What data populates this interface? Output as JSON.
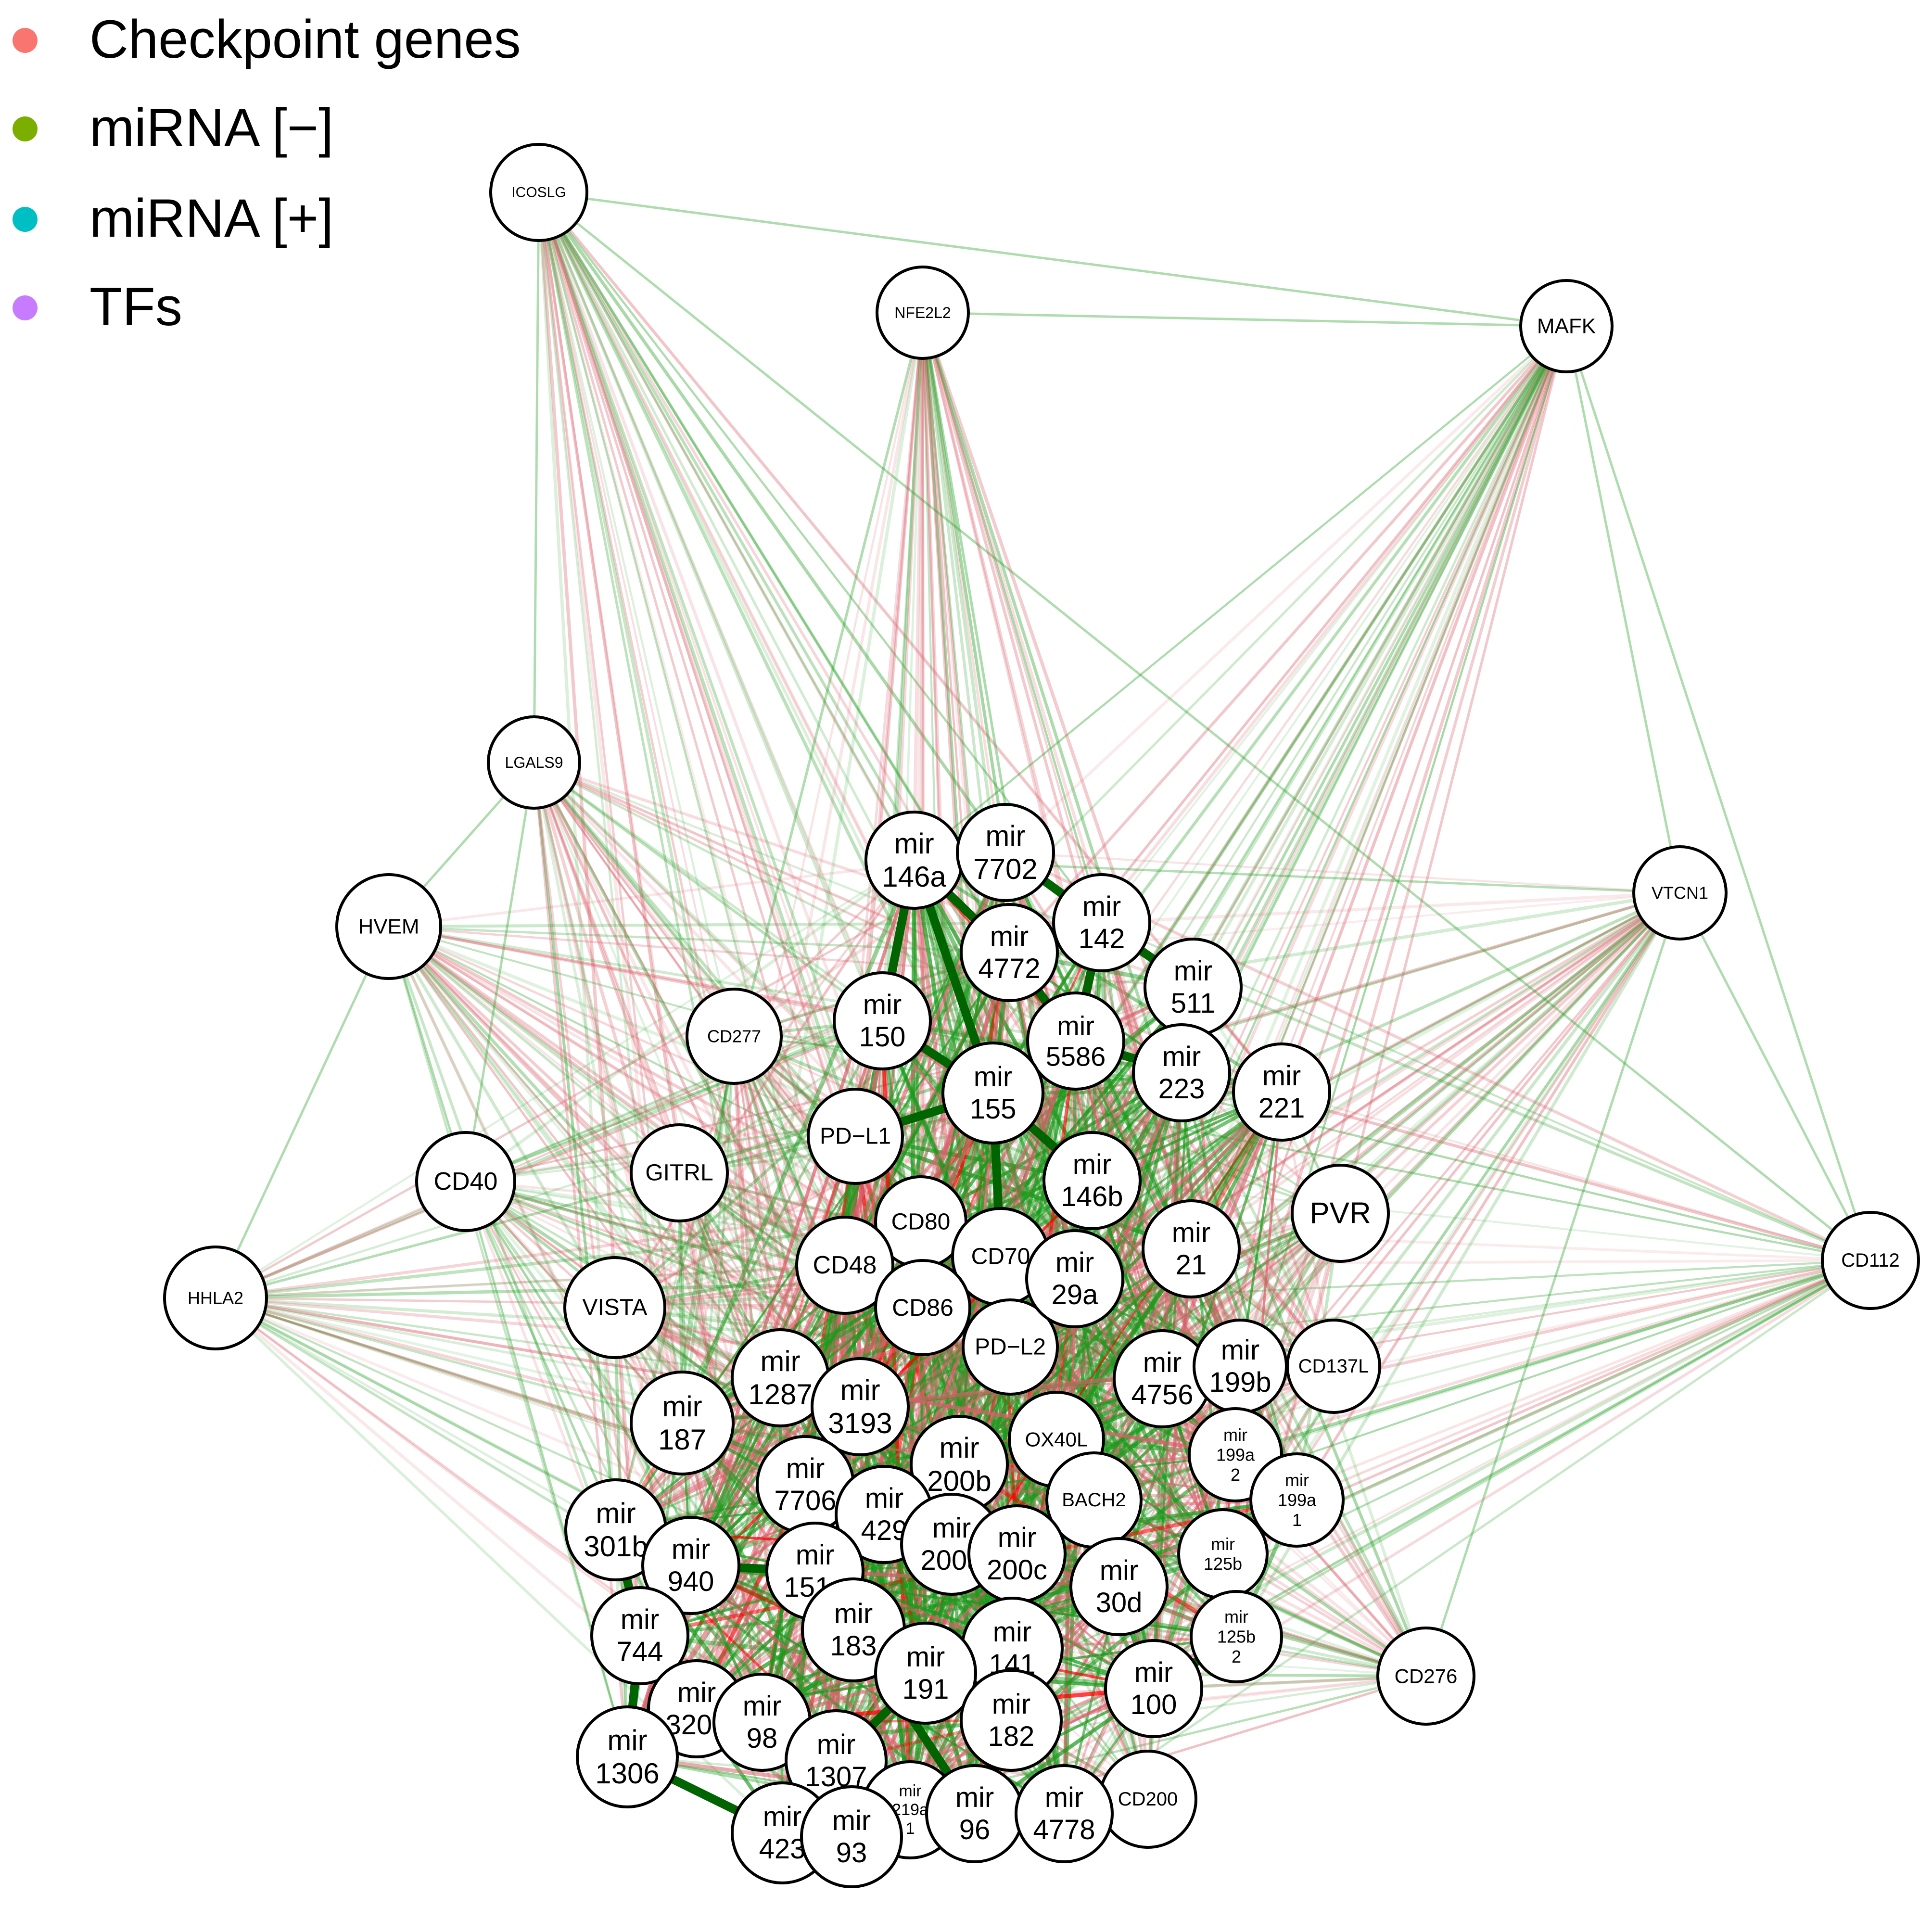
{
  "legend": [
    {
      "label": "Checkpoint genes",
      "color": "#F8766D"
    },
    {
      "label": "miRNA [−]",
      "color": "#7CAE00"
    },
    {
      "label": "miRNA [+]",
      "color": "#00BFC4"
    },
    {
      "label": "TFs",
      "color": "#C77CFF"
    }
  ],
  "edge_colors": {
    "positive": "#1a9a1a",
    "negative": "#d8606a",
    "strong_positive": "#006400",
    "strong_negative": "#ff0000"
  },
  "nodes": [
    {
      "id": "ICOSLG",
      "lines": [
        "ICOSLG"
      ],
      "type": "gene"
    },
    {
      "id": "NFE2L2",
      "lines": [
        "NFE2L2"
      ],
      "type": "tf"
    },
    {
      "id": "MAFK",
      "lines": [
        "MAFK"
      ],
      "type": "tf"
    },
    {
      "id": "LGALS9",
      "lines": [
        "LGALS9"
      ],
      "type": "gene"
    },
    {
      "id": "HVEM",
      "lines": [
        "HVEM"
      ],
      "type": "gene"
    },
    {
      "id": "VTCN1",
      "lines": [
        "VTCN1"
      ],
      "type": "gene"
    },
    {
      "id": "CD277",
      "lines": [
        "CD277"
      ],
      "type": "gene"
    },
    {
      "id": "CD40",
      "lines": [
        "CD40"
      ],
      "type": "gene"
    },
    {
      "id": "GITRL",
      "lines": [
        "GITRL"
      ],
      "type": "gene"
    },
    {
      "id": "HHLA2",
      "lines": [
        "HHLA2"
      ],
      "type": "gene"
    },
    {
      "id": "VISTA",
      "lines": [
        "VISTA"
      ],
      "type": "gene"
    },
    {
      "id": "CD112",
      "lines": [
        "CD112"
      ],
      "type": "gene"
    },
    {
      "id": "PVR",
      "lines": [
        "PVR"
      ],
      "type": "gene"
    },
    {
      "id": "CD137L",
      "lines": [
        "CD137L"
      ],
      "type": "gene"
    },
    {
      "id": "CD276",
      "lines": [
        "CD276"
      ],
      "type": "gene"
    },
    {
      "id": "CD200",
      "lines": [
        "CD200"
      ],
      "type": "gene"
    },
    {
      "id": "PD-L1",
      "lines": [
        "PD−L1"
      ],
      "type": "gene"
    },
    {
      "id": "CD80",
      "lines": [
        "CD80"
      ],
      "type": "gene"
    },
    {
      "id": "CD48",
      "lines": [
        "CD48"
      ],
      "type": "gene"
    },
    {
      "id": "CD70",
      "lines": [
        "CD70"
      ],
      "type": "gene"
    },
    {
      "id": "CD86",
      "lines": [
        "CD86"
      ],
      "type": "gene"
    },
    {
      "id": "PD-L2",
      "lines": [
        "PD−L2"
      ],
      "type": "gene"
    },
    {
      "id": "OX40L",
      "lines": [
        "OX40L"
      ],
      "type": "gene"
    },
    {
      "id": "BACH2",
      "lines": [
        "BACH2"
      ],
      "type": "tf"
    },
    {
      "id": "mir-146a",
      "lines": [
        "mir",
        "146a"
      ],
      "type": "mirna"
    },
    {
      "id": "mir-7702",
      "lines": [
        "mir",
        "7702"
      ],
      "type": "mirna"
    },
    {
      "id": "mir-142",
      "lines": [
        "mir",
        "142"
      ],
      "type": "mirna"
    },
    {
      "id": "mir-4772",
      "lines": [
        "mir",
        "4772"
      ],
      "type": "mirna"
    },
    {
      "id": "mir-511",
      "lines": [
        "mir",
        "511"
      ],
      "type": "mirna"
    },
    {
      "id": "mir-150",
      "lines": [
        "mir",
        "150"
      ],
      "type": "mirna"
    },
    {
      "id": "mir-5586",
      "lines": [
        "mir",
        "5586"
      ],
      "type": "mirna"
    },
    {
      "id": "mir-223",
      "lines": [
        "mir",
        "223"
      ],
      "type": "mirna"
    },
    {
      "id": "mir-221",
      "lines": [
        "mir",
        "221"
      ],
      "type": "mirna"
    },
    {
      "id": "mir-155",
      "lines": [
        "mir",
        "155"
      ],
      "type": "mirna"
    },
    {
      "id": "mir-146b",
      "lines": [
        "mir",
        "146b"
      ],
      "type": "mirna"
    },
    {
      "id": "mir-21",
      "lines": [
        "mir",
        "21"
      ],
      "type": "mirna"
    },
    {
      "id": "mir-29a",
      "lines": [
        "mir",
        "29a"
      ],
      "type": "mirna"
    },
    {
      "id": "mir-4756",
      "lines": [
        "mir",
        "4756"
      ],
      "type": "mirna"
    },
    {
      "id": "mir-199b",
      "lines": [
        "mir",
        "199b"
      ],
      "type": "mirna"
    },
    {
      "id": "mir-1287",
      "lines": [
        "mir",
        "1287"
      ],
      "type": "mirna"
    },
    {
      "id": "mir-3193",
      "lines": [
        "mir",
        "3193"
      ],
      "type": "mirna"
    },
    {
      "id": "mir-187",
      "lines": [
        "mir",
        "187"
      ],
      "type": "mirna"
    },
    {
      "id": "mir-200b",
      "lines": [
        "mir",
        "200b"
      ],
      "type": "mirna"
    },
    {
      "id": "mir-199a-2",
      "lines": [
        "mir",
        "199a",
        "2"
      ],
      "type": "mirna"
    },
    {
      "id": "mir-199a-1",
      "lines": [
        "mir",
        "199a",
        "1"
      ],
      "type": "mirna"
    },
    {
      "id": "mir-7706",
      "lines": [
        "mir",
        "7706"
      ],
      "type": "mirna"
    },
    {
      "id": "mir-429",
      "lines": [
        "mir",
        "429"
      ],
      "type": "mirna"
    },
    {
      "id": "mir-200a",
      "lines": [
        "mir",
        "200a"
      ],
      "type": "mirna"
    },
    {
      "id": "mir-200c",
      "lines": [
        "mir",
        "200c"
      ],
      "type": "mirna"
    },
    {
      "id": "mir-301b",
      "lines": [
        "mir",
        "301b"
      ],
      "type": "mirna"
    },
    {
      "id": "mir-940",
      "lines": [
        "mir",
        "940"
      ],
      "type": "mirna"
    },
    {
      "id": "mir-151a",
      "lines": [
        "mir",
        "151a"
      ],
      "type": "mirna"
    },
    {
      "id": "mir-125b-1",
      "lines": [
        "mir",
        "125b"
      ],
      "type": "mirna"
    },
    {
      "id": "mir-30d",
      "lines": [
        "mir",
        "30d"
      ],
      "type": "mirna"
    },
    {
      "id": "mir-744",
      "lines": [
        "mir",
        "744"
      ],
      "type": "mirna"
    },
    {
      "id": "mir-183",
      "lines": [
        "mir",
        "183"
      ],
      "type": "mirna"
    },
    {
      "id": "mir-141",
      "lines": [
        "mir",
        "141"
      ],
      "type": "mirna"
    },
    {
      "id": "mir-125b-2",
      "lines": [
        "mir",
        "125b",
        "2"
      ],
      "type": "mirna"
    },
    {
      "id": "mir-191",
      "lines": [
        "mir",
        "191"
      ],
      "type": "mirna"
    },
    {
      "id": "mir-100",
      "lines": [
        "mir",
        "100"
      ],
      "type": "mirna"
    },
    {
      "id": "mir-3200",
      "lines": [
        "mir",
        "3200"
      ],
      "type": "mirna"
    },
    {
      "id": "mir-98",
      "lines": [
        "mir",
        "98"
      ],
      "type": "mirna"
    },
    {
      "id": "mir-182",
      "lines": [
        "mir",
        "182"
      ],
      "type": "mirna"
    },
    {
      "id": "mir-1306",
      "lines": [
        "mir",
        "1306"
      ],
      "type": "mirna"
    },
    {
      "id": "mir-1307",
      "lines": [
        "mir",
        "1307"
      ],
      "type": "mirna"
    },
    {
      "id": "mir-219a-1",
      "lines": [
        "mir",
        "219a",
        "1"
      ],
      "type": "mirna"
    },
    {
      "id": "mir-96",
      "lines": [
        "mir",
        "96"
      ],
      "type": "mirna"
    },
    {
      "id": "mir-4778",
      "lines": [
        "mir",
        "4778"
      ],
      "type": "mirna"
    },
    {
      "id": "mir-423",
      "lines": [
        "mir",
        "423"
      ],
      "type": "mirna"
    },
    {
      "id": "mir-93",
      "lines": [
        "mir",
        "93"
      ],
      "type": "mirna"
    }
  ],
  "strong_edges": [
    [
      "mir-146a",
      "mir-150"
    ],
    [
      "mir-146a",
      "mir-155"
    ],
    [
      "mir-146a",
      "mir-4772"
    ],
    [
      "mir-7702",
      "mir-142"
    ],
    [
      "mir-142",
      "mir-5586"
    ],
    [
      "mir-142",
      "mir-511"
    ],
    [
      "mir-5586",
      "mir-223"
    ],
    [
      "mir-4772",
      "mir-5586"
    ],
    [
      "mir-155",
      "mir-146b"
    ],
    [
      "mir-155",
      "PD-L1"
    ],
    [
      "mir-155",
      "CD70"
    ],
    [
      "mir-150",
      "mir-155"
    ],
    [
      "mir-199b",
      "mir-199a-2"
    ],
    [
      "mir-199a-2",
      "mir-199a-1"
    ],
    [
      "mir-199a-1",
      "mir-125b-1"
    ],
    [
      "mir-125b-1",
      "mir-125b-2"
    ],
    [
      "mir-125b-2",
      "mir-100"
    ],
    [
      "mir-200b",
      "mir-200a"
    ],
    [
      "mir-200b",
      "mir-429"
    ],
    [
      "mir-200a",
      "mir-200c"
    ],
    [
      "mir-200c",
      "mir-141"
    ],
    [
      "mir-141",
      "mir-182"
    ],
    [
      "mir-183",
      "mir-182"
    ],
    [
      "mir-183",
      "mir-96"
    ],
    [
      "mir-191",
      "mir-1307"
    ],
    [
      "mir-191",
      "mir-182"
    ],
    [
      "mir-301b",
      "mir-744"
    ],
    [
      "mir-744",
      "mir-1306"
    ],
    [
      "mir-1306",
      "mir-3200"
    ],
    [
      "mir-3200",
      "mir-98"
    ],
    [
      "mir-1306",
      "mir-423"
    ],
    [
      "mir-423",
      "mir-93"
    ],
    [
      "mir-1307",
      "mir-93"
    ],
    [
      "mir-940",
      "mir-151a"
    ],
    [
      "mir-151a",
      "mir-7706"
    ],
    [
      "mir-7706",
      "mir-429"
    ],
    [
      "mir-146b",
      "mir-29a"
    ],
    [
      "CD80",
      "CD86"
    ],
    [
      "mir-4756",
      "mir-199b"
    ],
    [
      "mir-1287",
      "mir-3193"
    ]
  ]
}
